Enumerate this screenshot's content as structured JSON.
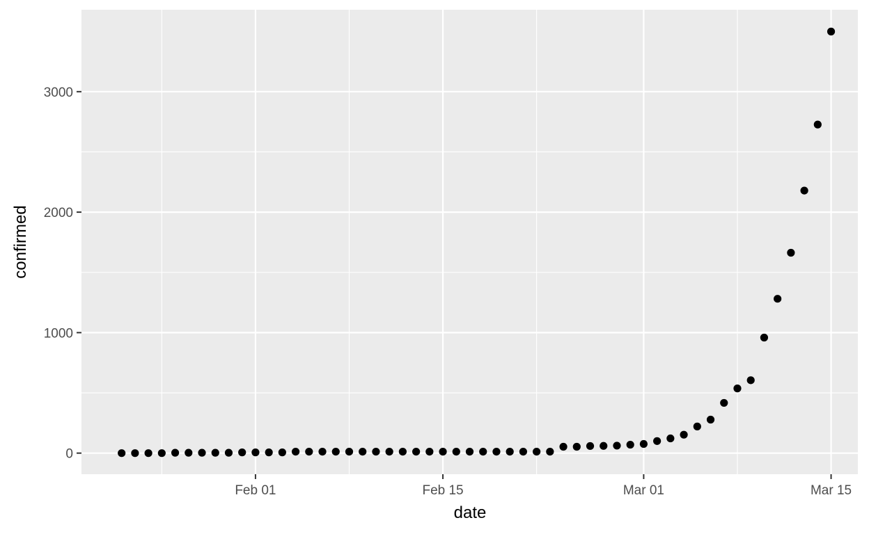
{
  "chart_data": {
    "type": "scatter",
    "xlabel": "date",
    "ylabel": "confirmed",
    "x_ticks": [
      {
        "date": "2020-02-01",
        "label": "Feb 01"
      },
      {
        "date": "2020-02-15",
        "label": "Feb 15"
      },
      {
        "date": "2020-03-01",
        "label": "Mar 01"
      },
      {
        "date": "2020-03-15",
        "label": "Mar 15"
      }
    ],
    "x_minor_ticks": [
      "2020-01-25",
      "2020-02-08",
      "2020-02-22",
      "2020-03-08"
    ],
    "y_ticks": [
      0,
      1000,
      2000,
      3000
    ],
    "y_minor_ticks": [
      500,
      1500,
      2500
    ],
    "xlim": [
      "2020-01-19",
      "2020-03-17"
    ],
    "ylim": [
      -175,
      3680
    ],
    "grid": true,
    "legend": "none",
    "colors": {
      "panel_background": "#ebebeb",
      "grid": "#ffffff",
      "point": "#000000",
      "tick_label": "#4d4d4d",
      "axis_tick": "#333333"
    },
    "x": [
      "2020-01-22",
      "2020-01-23",
      "2020-01-24",
      "2020-01-25",
      "2020-01-26",
      "2020-01-27",
      "2020-01-28",
      "2020-01-29",
      "2020-01-30",
      "2020-01-31",
      "2020-02-01",
      "2020-02-02",
      "2020-02-03",
      "2020-02-04",
      "2020-02-05",
      "2020-02-06",
      "2020-02-07",
      "2020-02-08",
      "2020-02-09",
      "2020-02-10",
      "2020-02-11",
      "2020-02-12",
      "2020-02-13",
      "2020-02-14",
      "2020-02-15",
      "2020-02-16",
      "2020-02-17",
      "2020-02-18",
      "2020-02-19",
      "2020-02-20",
      "2020-02-21",
      "2020-02-22",
      "2020-02-23",
      "2020-02-24",
      "2020-02-25",
      "2020-02-26",
      "2020-02-27",
      "2020-02-28",
      "2020-02-29",
      "2020-03-01",
      "2020-03-02",
      "2020-03-03",
      "2020-03-04",
      "2020-03-05",
      "2020-03-06",
      "2020-03-07",
      "2020-03-08",
      "2020-03-09",
      "2020-03-10",
      "2020-03-11",
      "2020-03-12",
      "2020-03-13",
      "2020-03-14",
      "2020-03-15"
    ],
    "y": [
      0,
      0,
      0,
      0,
      3,
      3,
      3,
      3,
      3,
      6,
      6,
      6,
      6,
      12,
      12,
      12,
      12,
      12,
      12,
      12,
      12,
      12,
      12,
      12,
      12,
      12,
      12,
      12,
      12,
      12,
      12,
      12,
      12,
      53,
      53,
      59,
      60,
      62,
      70,
      76,
      100,
      122,
      153,
      221,
      278,
      417,
      537,
      605,
      959,
      1281,
      1663,
      2179,
      2727,
      3499
    ]
  }
}
